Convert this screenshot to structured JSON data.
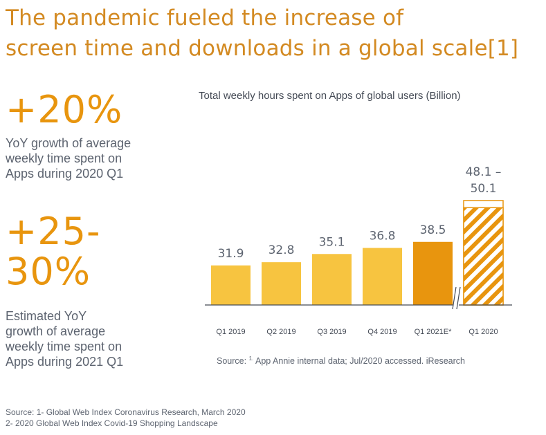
{
  "title": {
    "line1": "The pandemic fueled the increase of",
    "line2": "screen time and downloads in a global scale[1]"
  },
  "stats": [
    {
      "value_lines": [
        "+20%"
      ],
      "desc_lines": [
        "YoY growth of average",
        "weekly time spent on",
        "Apps during 2020 Q1"
      ]
    },
    {
      "value_lines": [
        "+25-",
        "30%"
      ],
      "desc_lines": [
        "Estimated YoY",
        "growth of average",
        "weekly time spent on",
        "Apps during 2021 Q1"
      ]
    }
  ],
  "chart_data": {
    "type": "bar",
    "title": "Total weekly hours spent on Apps of global users (Billion)",
    "categories": [
      "Q1 2019",
      "Q2 2019",
      "Q3 2019",
      "Q4 2019",
      "Q1 2021E*",
      "Q1 2020"
    ],
    "values": [
      31.9,
      32.8,
      35.1,
      36.8,
      38.5,
      50.1
    ],
    "labels": [
      "31.9",
      "32.8",
      "35.1",
      "36.8",
      "38.5",
      "48.1 –\n50.1"
    ],
    "range_low_last": 48.1,
    "axis_break_before_last": true,
    "colors": {
      "light": "#F7C440",
      "dark": "#E8950E",
      "estimate_hatch": "#E8950E",
      "label": "#5d6470"
    },
    "source_prefix": "Source: ",
    "source_sup": "1.",
    "source_text": " App Annie internal data; Jul/2020 accessed. iResearch"
  },
  "footer": {
    "line1": "Source: 1- Global Web Index Coronavirus Research, March 2020",
    "line2": "2- 2020 Global Web Index Covid-19 Shopping Landscape"
  }
}
